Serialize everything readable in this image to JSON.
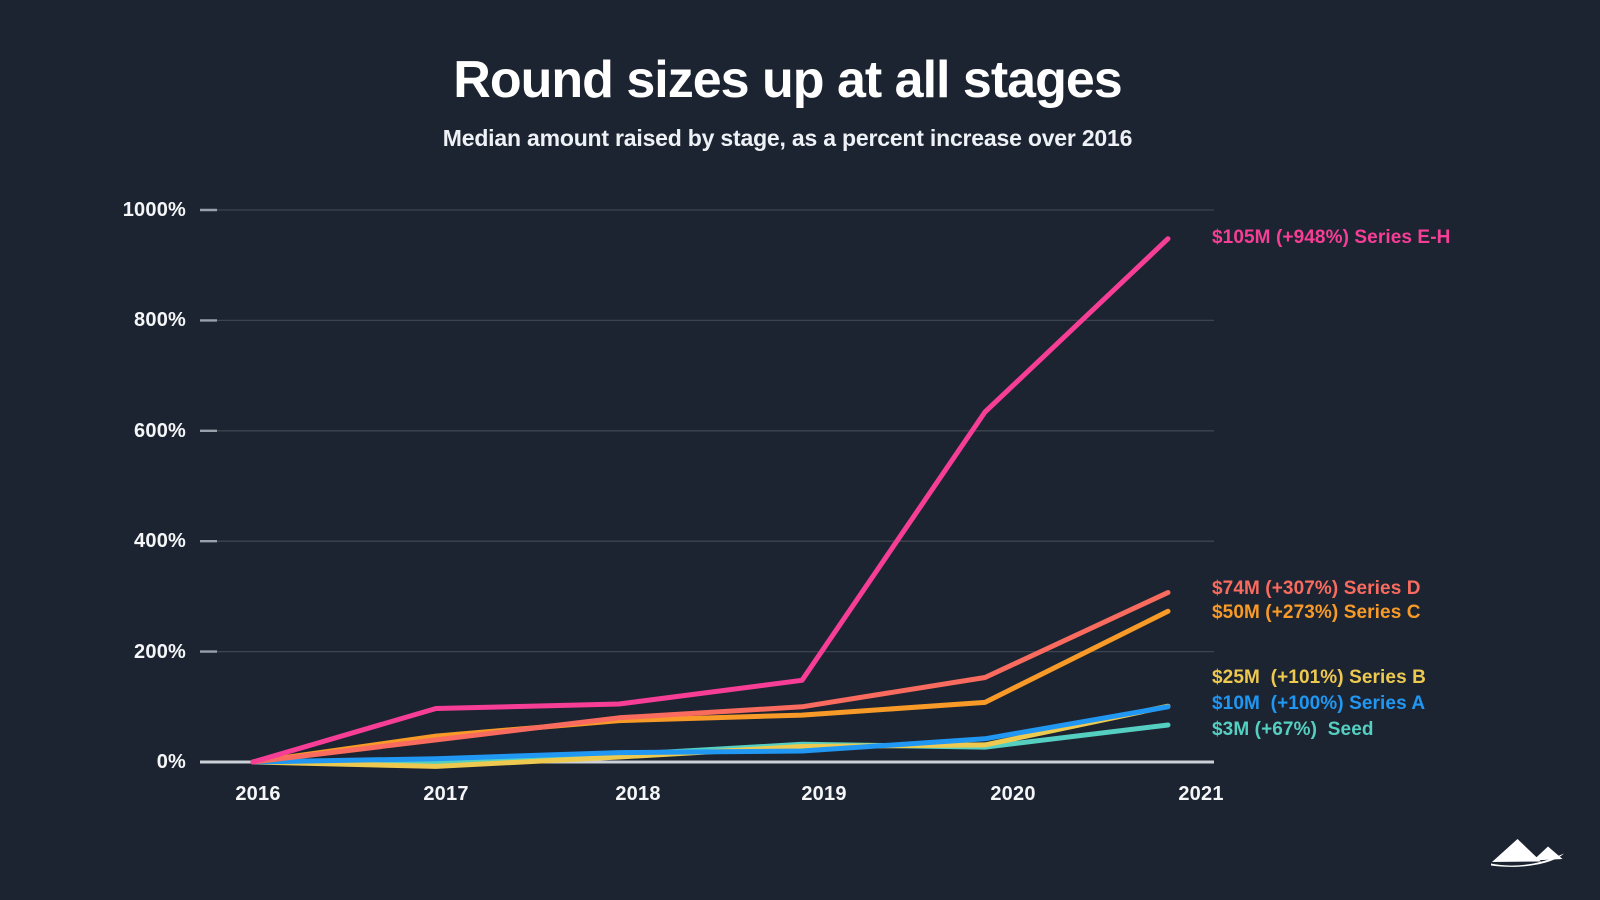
{
  "page": {
    "background_color": "#1d2431",
    "axis_color": "#ccd1d8",
    "gridline_color": "#3d4450",
    "tick_color": "#99a0ab",
    "text_color": "#ffffff"
  },
  "chart_data": {
    "type": "line",
    "title": "Round sizes up at all stages",
    "subtitle": "Median amount raised by stage, as a percent increase over 2016",
    "categories": [
      "2016",
      "2017",
      "2018",
      "2019",
      "2020",
      "2021"
    ],
    "yticks": [
      "1000%",
      "800%",
      "600%",
      "400%",
      "200%",
      "0%"
    ],
    "ylabel": "",
    "xlabel": "",
    "ylim": [
      0,
      1000
    ],
    "grid": true,
    "legend_position": "right-edge annotations at line ends",
    "series": [
      {
        "name": "Series E-H",
        "color": "#f73e96",
        "annotation": "$105M (+948%) Series E-H",
        "final_amount": "$105M",
        "final_pct_increase": 948,
        "values": [
          0,
          97,
          105,
          148,
          634,
          948
        ]
      },
      {
        "name": "Series D",
        "color": "#f96b5e",
        "annotation": "$74M (+307%) Series D",
        "final_amount": "$74M",
        "final_pct_increase": 307,
        "values": [
          0,
          40,
          80,
          100,
          153,
          307
        ]
      },
      {
        "name": "Series C",
        "color": "#f89a28",
        "annotation": "$50M (+273%) Series C",
        "final_amount": "$50M",
        "final_pct_increase": 273,
        "values": [
          0,
          47,
          75,
          85,
          108,
          273
        ]
      },
      {
        "name": "Series B",
        "color": "#eec94f",
        "annotation": "$25M  (+101%) Series B",
        "final_amount": "$25M",
        "final_pct_increase": 101,
        "values": [
          0,
          -8,
          9,
          28,
          31,
          101
        ]
      },
      {
        "name": "Series A",
        "color": "#2097f2",
        "annotation": "$10M  (+100%) Series A",
        "final_amount": "$10M",
        "final_pct_increase": 100,
        "values": [
          0,
          6,
          17,
          20,
          42,
          100
        ]
      },
      {
        "name": "Seed",
        "color": "#55cfc1",
        "annotation": "$3M (+67%)  Seed",
        "final_amount": "$3M",
        "final_pct_increase": 67,
        "values": [
          0,
          0,
          13,
          32,
          27,
          67
        ]
      }
    ]
  },
  "logo": {
    "name": "mountains-logo"
  }
}
